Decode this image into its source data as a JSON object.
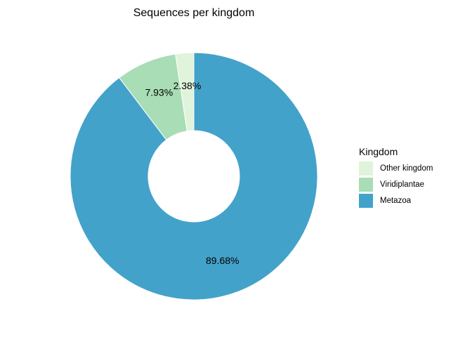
{
  "chart_data": {
    "type": "pie",
    "title": "Sequences per kingdom",
    "style": "donut",
    "start": "top",
    "direction": "clockwise",
    "slices": [
      {
        "label": "Metazoa",
        "value": 89.68,
        "display": "89.68%",
        "color": "#43A2CA"
      },
      {
        "label": "Viridiplantae",
        "value": 7.93,
        "display": "7.93%",
        "color": "#A8DDB5"
      },
      {
        "label": "Other kingdom",
        "value": 2.38,
        "display": "2.38%",
        "color": "#E0F3DB"
      }
    ],
    "legend": {
      "title": "Kingdom",
      "placement": "right",
      "items": [
        {
          "label": "Other kingdom",
          "color": "#E0F3DB"
        },
        {
          "label": "Viridiplantae",
          "color": "#A8DDB5"
        },
        {
          "label": "Metazoa",
          "color": "#43A2CA"
        }
      ]
    }
  }
}
